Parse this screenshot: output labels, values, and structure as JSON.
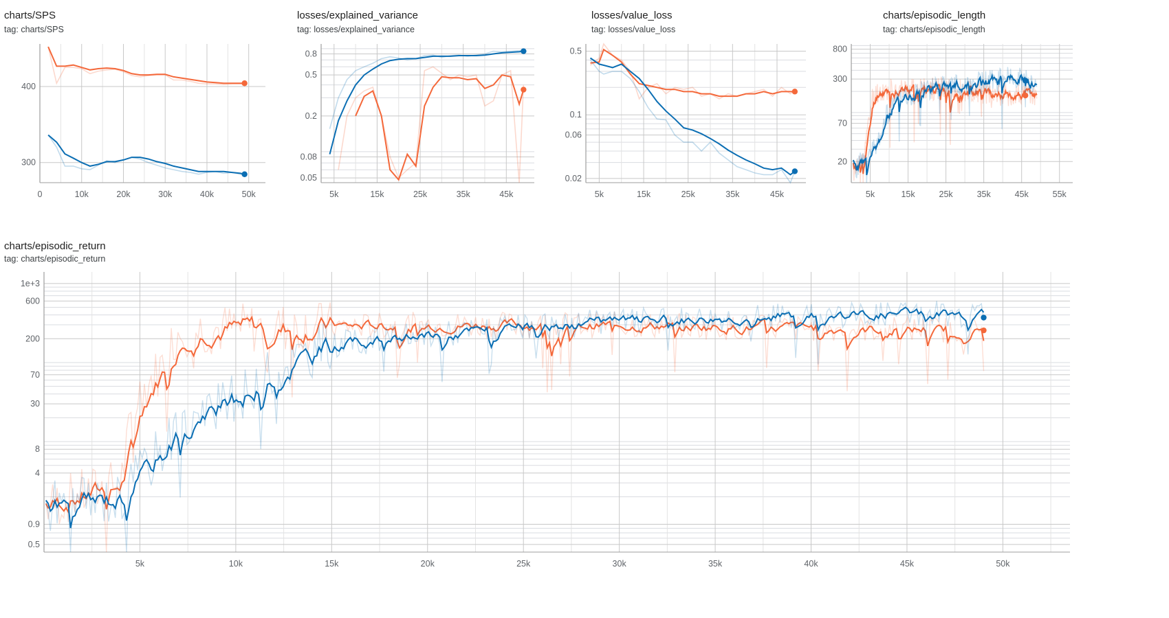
{
  "colors": {
    "orange": "#f4683a",
    "blue": "#0b6eb3"
  },
  "chart_data": [
    {
      "type": "line",
      "title": "charts/SPS",
      "tag": "tag: charts/SPS",
      "x_range": [
        0,
        54000
      ],
      "y_scale": "log",
      "y_range": [
        278,
        470
      ],
      "x_ticks": [
        0,
        10000,
        20000,
        30000,
        40000,
        50000
      ],
      "x_tick_labels": [
        "0",
        "10k",
        "20k",
        "30k",
        "40k",
        "50k"
      ],
      "y_ticks": [
        300,
        400
      ],
      "y_tick_labels": [
        "300",
        "400"
      ],
      "y_minor_grid": [],
      "x_minor_grid": [
        5000,
        15000,
        25000,
        35000,
        45000
      ],
      "series": [
        {
          "color_key": "orange",
          "x": [
            2000,
            4000,
            6000,
            8000,
            10000,
            12000,
            14000,
            16000,
            18000,
            20000,
            22000,
            24000,
            26000,
            28000,
            30000,
            32000,
            34000,
            36000,
            38000,
            40000,
            42000,
            44000,
            46000,
            48000,
            49000
          ],
          "raw": [
            465,
            405,
            430,
            430,
            428,
            420,
            424,
            426,
            427,
            423,
            417,
            415,
            417,
            418,
            418,
            410,
            410,
            408,
            405,
            404,
            404,
            403,
            404,
            404,
            404
          ],
          "smooth": [
            465,
            432,
            432,
            434,
            430,
            426,
            428,
            429,
            428,
            425,
            420,
            418,
            418,
            419,
            419,
            415,
            413,
            411,
            409,
            407,
            406,
            405,
            405,
            405,
            405
          ]
        },
        {
          "color_key": "blue",
          "x": [
            2000,
            4000,
            6000,
            8000,
            10000,
            12000,
            14000,
            16000,
            18000,
            20000,
            22000,
            24000,
            26000,
            28000,
            30000,
            32000,
            34000,
            36000,
            38000,
            40000,
            42000,
            44000,
            46000,
            48000,
            49000
          ],
          "raw": [
            333,
            318,
            296,
            296,
            293,
            292,
            297,
            302,
            300,
            303,
            306,
            304,
            300,
            297,
            294,
            292,
            290,
            289,
            287,
            289,
            290,
            288,
            289,
            287,
            286
          ],
          "smooth": [
            333,
            324,
            310,
            305,
            300,
            296,
            298,
            301,
            301,
            303,
            306,
            306,
            304,
            301,
            299,
            296,
            294,
            292,
            290,
            290,
            290,
            290,
            289,
            288,
            287
          ]
        }
      ]
    },
    {
      "type": "line",
      "title": "losses/explained_variance",
      "tag": "tag: losses/explained_variance",
      "x_range": [
        2000,
        51500
      ],
      "y_scale": "log",
      "y_range": [
        0.045,
        1.0
      ],
      "x_ticks": [
        5000,
        15000,
        25000,
        35000,
        45000
      ],
      "x_tick_labels": [
        "5k",
        "15k",
        "25k",
        "35k",
        "45k"
      ],
      "y_ticks": [
        0.05,
        0.08,
        0.2,
        0.5,
        0.8
      ],
      "y_tick_labels": [
        "0.05",
        "0.08",
        "0.2",
        "0.5",
        "0.8"
      ],
      "y_minor_grid": [
        0.06,
        0.07,
        0.09,
        0.3,
        0.4,
        0.6,
        0.7,
        0.9
      ],
      "x_minor_grid": [
        10000,
        20000,
        30000,
        40000
      ],
      "series": [
        {
          "color_key": "blue",
          "x": [
            4000,
            6000,
            8000,
            10000,
            12000,
            14000,
            16000,
            18000,
            20000,
            22000,
            24000,
            26000,
            28000,
            30000,
            32000,
            34000,
            36000,
            38000,
            40000,
            42000,
            44000,
            46000,
            48000,
            49000
          ],
          "raw": [
            0.15,
            0.3,
            0.45,
            0.55,
            0.6,
            0.65,
            0.72,
            0.75,
            0.73,
            0.7,
            0.72,
            0.77,
            0.78,
            0.74,
            0.77,
            0.78,
            0.76,
            0.78,
            0.8,
            0.85,
            0.84,
            0.85,
            0.86,
            0.87
          ],
          "smooth": [
            0.085,
            0.18,
            0.28,
            0.4,
            0.5,
            0.57,
            0.64,
            0.69,
            0.71,
            0.72,
            0.72,
            0.74,
            0.76,
            0.76,
            0.76,
            0.77,
            0.77,
            0.77,
            0.78,
            0.8,
            0.82,
            0.83,
            0.84,
            0.85
          ]
        },
        {
          "color_key": "orange",
          "x": [
            4000,
            6000,
            8000,
            10000,
            12000,
            14000,
            16000,
            18000,
            20000,
            22000,
            24000,
            26000,
            28000,
            30000,
            32000,
            34000,
            36000,
            38000,
            40000,
            42000,
            44000,
            46000,
            48000,
            49000
          ],
          "raw": [
            null,
            0.06,
            0.2,
            0.3,
            0.35,
            0.38,
            0.2,
            0.08,
            0.05,
            0.06,
            0.07,
            0.55,
            0.6,
            0.52,
            0.45,
            0.5,
            0.48,
            0.5,
            0.25,
            0.28,
            0.5,
            0.55,
            0.04,
            0.4
          ],
          "smooth": [
            null,
            null,
            null,
            0.2,
            0.31,
            0.35,
            0.2,
            0.06,
            0.048,
            0.085,
            0.065,
            0.25,
            0.38,
            0.48,
            0.47,
            0.47,
            0.45,
            0.46,
            0.37,
            0.4,
            0.5,
            0.48,
            0.26,
            0.36
          ]
        }
      ]
    },
    {
      "type": "line",
      "title": "losses/value_loss",
      "tag": "tag: losses/value_loss",
      "x_range": [
        2000,
        51500
      ],
      "y_scale": "log",
      "y_range": [
        0.018,
        0.6
      ],
      "x_ticks": [
        5000,
        15000,
        25000,
        35000,
        45000
      ],
      "x_tick_labels": [
        "5k",
        "15k",
        "25k",
        "35k",
        "45k"
      ],
      "y_ticks": [
        0.02,
        0.06,
        0.1,
        0.5
      ],
      "y_tick_labels": [
        "0.02",
        "0.06",
        "0.1",
        "0.5"
      ],
      "y_minor_grid": [
        0.03,
        0.04,
        0.05,
        0.07,
        0.08,
        0.09,
        0.2,
        0.3,
        0.4
      ],
      "x_minor_grid": [
        10000,
        20000,
        30000,
        40000
      ],
      "series": [
        {
          "color_key": "orange",
          "x": [
            3000,
            5000,
            6000,
            8000,
            10000,
            12000,
            14000,
            16000,
            18000,
            20000,
            22000,
            24000,
            26000,
            28000,
            30000,
            32000,
            34000,
            36000,
            38000,
            40000,
            42000,
            44000,
            46000,
            48000,
            49000
          ],
          "raw": [
            0.35,
            0.42,
            0.62,
            0.45,
            0.4,
            0.3,
            0.15,
            0.2,
            0.22,
            0.17,
            0.2,
            0.19,
            0.2,
            0.16,
            0.17,
            0.15,
            0.17,
            0.16,
            0.17,
            0.18,
            0.19,
            0.16,
            0.2,
            0.17,
            0.19
          ],
          "smooth": [
            0.37,
            0.38,
            0.52,
            0.45,
            0.38,
            0.28,
            0.22,
            0.21,
            0.2,
            0.19,
            0.19,
            0.18,
            0.18,
            0.17,
            0.17,
            0.16,
            0.16,
            0.16,
            0.17,
            0.17,
            0.18,
            0.17,
            0.18,
            0.18,
            0.18
          ]
        },
        {
          "color_key": "blue",
          "x": [
            3000,
            5000,
            6000,
            8000,
            10000,
            12000,
            14000,
            16000,
            18000,
            20000,
            22000,
            24000,
            26000,
            28000,
            30000,
            32000,
            34000,
            36000,
            38000,
            40000,
            42000,
            44000,
            46000,
            48000,
            49000
          ],
          "raw": [
            0.4,
            0.3,
            0.28,
            0.3,
            0.3,
            0.25,
            0.18,
            0.12,
            0.09,
            0.088,
            0.06,
            0.05,
            0.05,
            0.04,
            0.05,
            0.038,
            0.032,
            0.027,
            0.025,
            0.023,
            0.022,
            0.022,
            0.025,
            0.015,
            0.024
          ],
          "smooth": [
            0.42,
            0.36,
            0.35,
            0.33,
            0.36,
            0.3,
            0.25,
            0.19,
            0.14,
            0.11,
            0.09,
            0.072,
            0.068,
            0.062,
            0.055,
            0.048,
            0.041,
            0.036,
            0.032,
            0.029,
            0.026,
            0.025,
            0.026,
            0.022,
            0.024
          ]
        }
      ]
    },
    {
      "type": "line",
      "title": "charts/episodic_length",
      "tag": "tag: charts/episodic_length",
      "x_range": [
        0,
        58500
      ],
      "y_scale": "log",
      "y_range": [
        10,
        950
      ],
      "x_ticks": [
        5000,
        15000,
        25000,
        35000,
        45000,
        55000
      ],
      "x_tick_labels": [
        "5k",
        "15k",
        "25k",
        "35k",
        "45k",
        "55k"
      ],
      "y_ticks": [
        20,
        70,
        300,
        800
      ],
      "y_tick_labels": [
        "20",
        "70",
        "300",
        "800"
      ],
      "y_minor_grid": [
        30,
        40,
        50,
        60,
        80,
        90,
        100,
        200,
        400,
        500,
        600,
        700,
        900
      ],
      "x_minor_grid": [
        10000,
        20000,
        30000,
        40000,
        50000
      ],
      "noisy": [
        {
          "color_key": "orange",
          "x_start": 500,
          "x_end": 49000,
          "segments": [
            [
              500,
              14
            ],
            [
              3000,
              22
            ],
            [
              4500,
              60
            ],
            [
              5500,
              160
            ],
            [
              7000,
              200
            ],
            [
              10000,
              210
            ],
            [
              20000,
              220
            ],
            [
              30000,
              210
            ],
            [
              40000,
              180
            ],
            [
              49000,
              180
            ]
          ],
          "seed": 11
        },
        {
          "color_key": "blue",
          "x_start": 500,
          "x_end": 49000,
          "segments": [
            [
              500,
              15
            ],
            [
              3000,
              20
            ],
            [
              5000,
              25
            ],
            [
              7000,
              40
            ],
            [
              9000,
              80
            ],
            [
              11000,
              130
            ],
            [
              14000,
              170
            ],
            [
              20000,
              220
            ],
            [
              30000,
              250
            ],
            [
              40000,
              300
            ],
            [
              44000,
              330
            ],
            [
              47000,
              260
            ],
            [
              49000,
              220
            ]
          ],
          "seed": 23
        }
      ],
      "end_points": [
        {
          "color_key": "blue",
          "x": 46000,
          "y": 285
        },
        {
          "color_key": "orange",
          "x": 46000,
          "y": 175
        }
      ]
    },
    {
      "type": "line",
      "title": "charts/episodic_return",
      "tag": "tag: charts/episodic_return",
      "x_range": [
        0,
        53500
      ],
      "y_scale": "log",
      "y_range": [
        0.4,
        1400
      ],
      "x_ticks": [
        5000,
        10000,
        15000,
        20000,
        25000,
        30000,
        35000,
        40000,
        45000,
        50000
      ],
      "x_tick_labels": [
        "5k",
        "10k",
        "15k",
        "20k",
        "25k",
        "30k",
        "35k",
        "40k",
        "45k",
        "50k"
      ],
      "y_ticks": [
        0.5,
        0.9,
        4,
        8,
        30,
        70,
        200,
        600,
        1000
      ],
      "y_tick_labels": [
        "0.5",
        "0.9",
        "4",
        "8",
        "30",
        "70",
        "200",
        "600",
        "1e+3"
      ],
      "y_minor_grid": [
        0.6,
        0.7,
        0.8,
        2,
        3,
        5,
        6,
        7,
        9,
        10,
        20,
        40,
        50,
        60,
        80,
        90,
        100,
        300,
        400,
        500,
        700,
        800,
        900
      ],
      "x_minor_grid": [
        2500,
        7500,
        12500,
        17500,
        22500,
        27500,
        32500,
        37500,
        42500,
        47500,
        52500
      ],
      "noisy": [
        {
          "color_key": "orange",
          "x_start": 100,
          "x_end": 49000,
          "segments": [
            [
              100,
              1.5
            ],
            [
              1500,
              2
            ],
            [
              3000,
              2.5
            ],
            [
              4000,
              3
            ],
            [
              4500,
              15
            ],
            [
              5000,
              40
            ],
            [
              6000,
              80
            ],
            [
              7000,
              250
            ],
            [
              10000,
              270
            ],
            [
              20000,
              300
            ],
            [
              30000,
              300
            ],
            [
              40000,
              270
            ],
            [
              49000,
              260
            ]
          ],
          "seed": 7
        },
        {
          "color_key": "blue",
          "x_start": 100,
          "x_end": 49000,
          "segments": [
            [
              100,
              1.5
            ],
            [
              4000,
              2
            ],
            [
              5000,
              4
            ],
            [
              7000,
              15
            ],
            [
              9000,
              25
            ],
            [
              11000,
              50
            ],
            [
              13000,
              110
            ],
            [
              15000,
              170
            ],
            [
              18000,
              200
            ],
            [
              22000,
              250
            ],
            [
              26000,
              280
            ],
            [
              30000,
              340
            ],
            [
              35000,
              370
            ],
            [
              40000,
              400
            ],
            [
              45000,
              430
            ],
            [
              49000,
              400
            ]
          ],
          "seed": 31
        }
      ],
      "end_points": [
        {
          "color_key": "blue",
          "x": 49000,
          "y": 370
        },
        {
          "color_key": "orange",
          "x": 49000,
          "y": 255
        }
      ]
    }
  ]
}
